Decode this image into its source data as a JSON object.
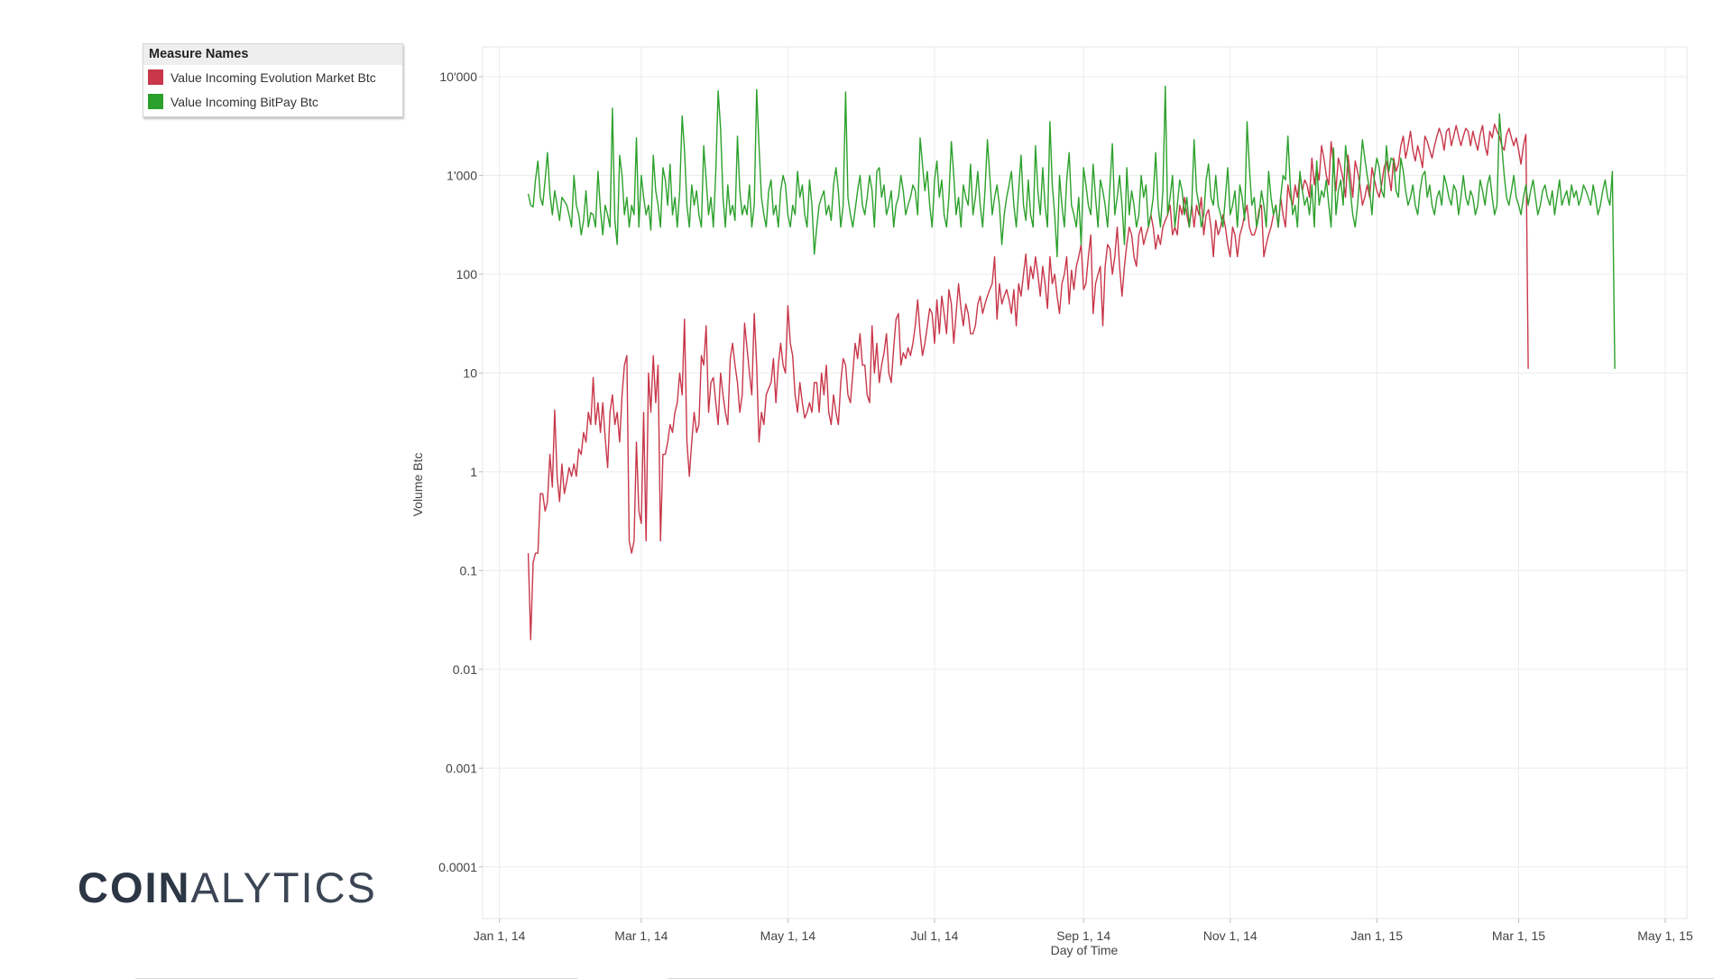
{
  "legend": {
    "title": "Measure Names",
    "items": [
      {
        "label": "Value Incoming Evolution Market Btc",
        "color": "#c8374a"
      },
      {
        "label": "Value Incoming BitPay Btc",
        "color": "#2ca02c"
      }
    ]
  },
  "logo": {
    "part1": "COIN",
    "part2": "ALYTICS"
  },
  "chart_data": {
    "type": "line",
    "title": "",
    "xlabel": "Day of Time",
    "ylabel": "Volume Btc",
    "yscale": "log",
    "ylim": [
      3e-05,
      20000
    ],
    "x_range": [
      "2013-12-25",
      "2015-05-10"
    ],
    "x_ticks": [
      {
        "date": "2014-01-01",
        "label": "Jan 1, 14"
      },
      {
        "date": "2014-03-01",
        "label": "Mar 1, 14"
      },
      {
        "date": "2014-05-01",
        "label": "May 1, 14"
      },
      {
        "date": "2014-07-01",
        "label": "Jul 1, 14"
      },
      {
        "date": "2014-09-01",
        "label": "Sep 1, 14"
      },
      {
        "date": "2014-11-01",
        "label": "Nov 1, 14"
      },
      {
        "date": "2015-01-01",
        "label": "Jan 1, 15"
      },
      {
        "date": "2015-03-01",
        "label": "Mar 1, 15"
      },
      {
        "date": "2015-05-01",
        "label": "May 1, 15"
      }
    ],
    "y_ticks": [
      {
        "value": 10000,
        "label": "10'000"
      },
      {
        "value": 1000,
        "label": "1'000"
      },
      {
        "value": 100,
        "label": "100"
      },
      {
        "value": 10,
        "label": "10"
      },
      {
        "value": 1,
        "label": "1"
      },
      {
        "value": 0.1,
        "label": "0.1"
      },
      {
        "value": 0.01,
        "label": "0.01"
      },
      {
        "value": 0.001,
        "label": "0.001"
      },
      {
        "value": 0.0001,
        "label": "0.0001"
      }
    ],
    "series": [
      {
        "name": "Value Incoming Evolution Market Btc",
        "color": "#c8374a",
        "start_date": "2014-01-13",
        "values": [
          0.15,
          0.02,
          0.12,
          0.15,
          0.15,
          0.6,
          0.6,
          0.4,
          0.5,
          1.5,
          0.7,
          4.2,
          0.9,
          0.5,
          1.2,
          0.6,
          0.8,
          1.1,
          0.9,
          1.2,
          0.9,
          1.7,
          1.5,
          2.5,
          2.0,
          4,
          3,
          9,
          3,
          5,
          2.5,
          5,
          2.2,
          1.1,
          4,
          6,
          3,
          4,
          2,
          6,
          12,
          15,
          0.2,
          0.15,
          0.2,
          2,
          0.4,
          0.3,
          4,
          0.2,
          10,
          4,
          15,
          5,
          12,
          0.2,
          1.5,
          1.5,
          2,
          3,
          2.5,
          4,
          5,
          10,
          6,
          35,
          2,
          0.9,
          2,
          4,
          2.5,
          3,
          15,
          12,
          30,
          4,
          8,
          9,
          5,
          3,
          10,
          6,
          4,
          3,
          14,
          20,
          12,
          8,
          4,
          6,
          32,
          18,
          10,
          6,
          40,
          12,
          2.0,
          4,
          3,
          6,
          7,
          8,
          14,
          5,
          12,
          20,
          12,
          10,
          48,
          20,
          15,
          6,
          4,
          8,
          5,
          3.5,
          4,
          5,
          4,
          8,
          8,
          4,
          10,
          6,
          12,
          4,
          3,
          6,
          4,
          3,
          8,
          14,
          12,
          6,
          5,
          10,
          20,
          14,
          25,
          12,
          12,
          6,
          5,
          30,
          10,
          20,
          8,
          12,
          16,
          25,
          10,
          8,
          18,
          35,
          40,
          12,
          16,
          14,
          18,
          15,
          20,
          30,
          55,
          25,
          15,
          20,
          30,
          45,
          40,
          20,
          55,
          25,
          60,
          40,
          25,
          70,
          50,
          20,
          40,
          80,
          45,
          30,
          50,
          40,
          25,
          25,
          30,
          50,
          60,
          40,
          50,
          60,
          70,
          80,
          150,
          35,
          80,
          50,
          60,
          70,
          55,
          40,
          70,
          30,
          80,
          60,
          100,
          160,
          70,
          120,
          90,
          150,
          100,
          60,
          120,
          80,
          45,
          150,
          80,
          100,
          60,
          40,
          80,
          100,
          150,
          50,
          110,
          70,
          120,
          150,
          200,
          70,
          80,
          150,
          250,
          40,
          80,
          100,
          120,
          30,
          120,
          200,
          180,
          100,
          150,
          300,
          120,
          60,
          120,
          200,
          300,
          250,
          150,
          120,
          250,
          300,
          200,
          250,
          300,
          400,
          300,
          180,
          250,
          200,
          300,
          350,
          400,
          500,
          250,
          300,
          250,
          500,
          400,
          600,
          400,
          300,
          500,
          300,
          500,
          400,
          600,
          250,
          400,
          450,
          300,
          150,
          350,
          250,
          300,
          400,
          300,
          200,
          150,
          300,
          250,
          150,
          250,
          300,
          400,
          500,
          300,
          250,
          250,
          300,
          450,
          500,
          150,
          200,
          250,
          300,
          400,
          500,
          300,
          600,
          400,
          300,
          800,
          600,
          500,
          800,
          600,
          1000,
          700,
          900,
          800,
          600,
          1500,
          800,
          1200,
          900,
          2000,
          1500,
          1000,
          800,
          2200,
          1300,
          700,
          1500,
          1200,
          900,
          600,
          1600,
          1000,
          600,
          1400,
          1100,
          800,
          500,
          600,
          800,
          600,
          1200,
          900,
          700,
          600,
          800,
          1200,
          1400,
          1000,
          700,
          1500,
          1100,
          1300,
          2000,
          2500,
          1500,
          2000,
          2800,
          1800,
          1400,
          2000,
          1600,
          1200,
          2500,
          2200,
          1800,
          1500,
          2000,
          2500,
          3000,
          2500,
          1800,
          2800,
          3000,
          2000,
          2500,
          3200,
          2500,
          2000,
          2500,
          3000,
          2800,
          2000,
          2800,
          2200,
          1800,
          2600,
          3200,
          2000,
          1600,
          2800,
          2400,
          3300,
          2800,
          2500,
          2000,
          1800,
          2600,
          3000,
          2400,
          2000,
          2400,
          1800,
          1300,
          2000,
          2600,
          11
        ]
      },
      {
        "name": "Value Incoming BitPay Btc",
        "color": "#2ca02c",
        "start_date": "2014-01-13",
        "values": [
          650,
          500,
          480,
          900,
          1400,
          600,
          500,
          900,
          1700,
          650,
          400,
          700,
          500,
          350,
          600,
          550,
          500,
          400,
          300,
          1000,
          500,
          400,
          250,
          350,
          700,
          300,
          420,
          400,
          300,
          1100,
          450,
          250,
          500,
          400,
          300,
          4800,
          350,
          200,
          1600,
          1000,
          400,
          600,
          300,
          500,
          400,
          2400,
          300,
          1000,
          600,
          400,
          500,
          280,
          1600,
          700,
          500,
          300,
          1200,
          900,
          500,
          1300,
          400,
          600,
          300,
          700,
          4000,
          1800,
          500,
          300,
          800,
          500,
          700,
          400,
          300,
          2000,
          900,
          400,
          600,
          300,
          1100,
          7200,
          3000,
          600,
          300,
          800,
          400,
          500,
          350,
          2500,
          700,
          400,
          500,
          400,
          800,
          300,
          500,
          7400,
          2000,
          600,
          400,
          300,
          700,
          900,
          400,
          500,
          300,
          700,
          1000,
          800,
          400,
          300,
          500,
          400,
          1100,
          600,
          800,
          400,
          300,
          900,
          500,
          160,
          300,
          500,
          600,
          700,
          400,
          500,
          350,
          800,
          1200,
          700,
          300,
          500,
          7000,
          600,
          400,
          300,
          450,
          700,
          1000,
          500,
          400,
          600,
          1000,
          700,
          300,
          1100,
          1200,
          600,
          800,
          400,
          500,
          700,
          300,
          500,
          600,
          1000,
          700,
          400,
          500,
          600,
          800,
          700,
          400,
          2400,
          1300,
          700,
          1100,
          500,
          300,
          900,
          1400,
          600,
          900,
          400,
          300,
          600,
          2200,
          1000,
          400,
          600,
          300,
          800,
          600,
          500,
          1300,
          400,
          600,
          1100,
          500,
          300,
          700,
          2300,
          1000,
          400,
          600,
          800,
          500,
          200,
          400,
          600,
          800,
          1100,
          500,
          300,
          700,
          1600,
          500,
          350,
          900,
          400,
          300,
          2000,
          700,
          400,
          1200,
          500,
          300,
          3500,
          800,
          400,
          150,
          1000,
          500,
          300,
          900,
          1700,
          500,
          400,
          300,
          600,
          200,
          1200,
          800,
          500,
          400,
          1300,
          600,
          300,
          900,
          700,
          500,
          300,
          800,
          2100,
          400,
          600,
          1000,
          500,
          200,
          1200,
          400,
          700,
          500,
          300,
          400,
          1000,
          600,
          800,
          300,
          400,
          600,
          1700,
          500,
          300,
          700,
          8000,
          400,
          600,
          1000,
          300,
          500,
          900,
          700,
          400,
          600,
          300,
          500,
          2300,
          700,
          500,
          300,
          400,
          900,
          1300,
          600,
          500,
          1000,
          500,
          400,
          300,
          600,
          1200,
          400,
          500,
          700,
          300,
          800,
          600,
          350,
          3500,
          1200,
          500,
          600,
          300,
          400,
          700,
          500,
          300,
          1100,
          600,
          400,
          500,
          300,
          600,
          1000,
          900,
          2500,
          800,
          400,
          500,
          300,
          1100,
          700,
          500,
          600,
          400,
          800,
          300,
          1400,
          500,
          700,
          600,
          900,
          500,
          300,
          1900,
          400,
          700,
          900,
          500,
          2000,
          1200,
          700,
          400,
          300,
          500,
          1000,
          2300,
          1500,
          1000,
          700,
          400,
          1000,
          1500,
          1200,
          700,
          600,
          2000,
          1100,
          1500,
          1400,
          700,
          600,
          1500,
          1100,
          700,
          500,
          600,
          800,
          500,
          400,
          700,
          1000,
          1100,
          600,
          800,
          500,
          400,
          600,
          700,
          500,
          1000,
          800,
          600,
          500,
          800,
          700,
          400,
          600,
          1000,
          600,
          500,
          700,
          600,
          400,
          500,
          900,
          700,
          500,
          800,
          1000,
          600,
          400,
          500,
          4200,
          2000,
          1000,
          600,
          500,
          700,
          1000,
          600,
          500,
          400,
          600,
          800,
          500,
          700,
          900,
          600,
          400,
          500,
          700,
          800,
          600,
          500,
          700,
          400,
          600,
          900,
          500,
          600,
          700,
          500,
          800,
          600,
          700,
          500,
          600,
          800,
          700,
          600,
          500,
          800,
          600,
          400,
          500,
          700,
          900,
          600,
          500,
          1100,
          11
        ]
      }
    ]
  }
}
